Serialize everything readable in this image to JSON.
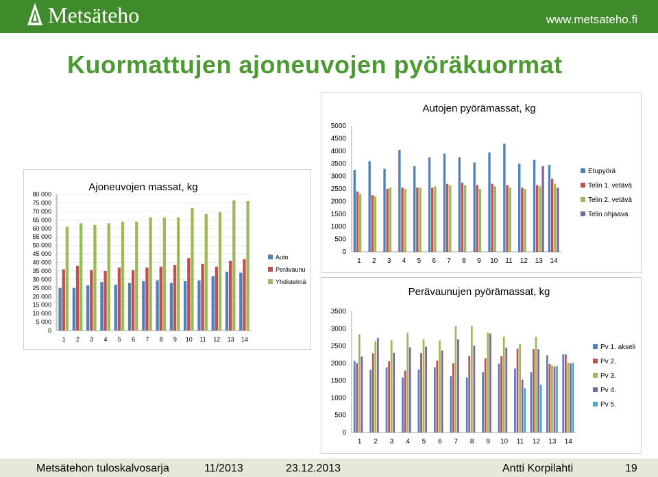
{
  "header": {
    "logo_text": "Metsäteho",
    "url": "www.metsateho.fi",
    "colors": {
      "bar": "#3f8a2b",
      "title": "#4b9b32",
      "footer": "#e4e9da"
    }
  },
  "page_title": "Kuormattujen ajoneuvojen pyöräkuormat",
  "footer": {
    "series": "Metsätehon tuloskalvosarja",
    "issue": "11/2013",
    "date": "23.12.2013",
    "author": "Antti Korpilahti",
    "page": "19"
  },
  "chart_data": [
    {
      "id": "vehicle-mass",
      "type": "bar",
      "title": "Ajoneuvojen massat, kg",
      "categories": [
        "1",
        "2",
        "3",
        "4",
        "5",
        "6",
        "7",
        "8",
        "9",
        "10",
        "11",
        "12",
        "13",
        "14"
      ],
      "ylim": [
        0,
        80000
      ],
      "yticks": [
        0,
        5000,
        10000,
        15000,
        20000,
        25000,
        30000,
        35000,
        40000,
        45000,
        50000,
        55000,
        60000,
        65000,
        70000,
        75000,
        80000
      ],
      "ytick_labels": [
        "0",
        "5 000",
        "10 000",
        "15 000",
        "20 000",
        "25 000",
        "30 000",
        "35 000",
        "40 000",
        "45 000",
        "50 000",
        "55 000",
        "60 000",
        "65 000",
        "70 000",
        "75 000",
        "80 000"
      ],
      "grid": true,
      "legend": "right",
      "series": [
        {
          "name": "Auto",
          "color": "#4f81bd",
          "values": [
            25000,
            25000,
            26500,
            28500,
            27000,
            28000,
            29000,
            29500,
            28000,
            29000,
            29500,
            32000,
            34500,
            34000
          ]
        },
        {
          "name": "Perävaunu",
          "color": "#c0504d",
          "values": [
            36000,
            38000,
            35500,
            35000,
            37000,
            35500,
            37000,
            37500,
            38500,
            42500,
            39000,
            37500,
            41000,
            42000
          ]
        },
        {
          "name": "Yhdistelmä",
          "color": "#9bbb59",
          "values": [
            61000,
            63000,
            62000,
            63000,
            64000,
            64000,
            66500,
            66500,
            66500,
            72000,
            68500,
            69500,
            76500,
            76000
          ]
        }
      ]
    },
    {
      "id": "truck-wheel-mass",
      "type": "bar",
      "title": "Autojen pyörämassat, kg",
      "categories": [
        "1",
        "2",
        "3",
        "4",
        "5",
        "6",
        "7",
        "8",
        "9",
        "10",
        "11",
        "12",
        "13",
        "14"
      ],
      "ylim": [
        0,
        5000
      ],
      "yticks": [
        0,
        500,
        1000,
        1500,
        2000,
        2500,
        3000,
        3500,
        4000,
        4500,
        5000
      ],
      "ytick_labels": [
        "0",
        "500",
        "1000",
        "1500",
        "2000",
        "2500",
        "3000",
        "3500",
        "4000",
        "4500",
        "5000"
      ],
      "grid": false,
      "legend": "right",
      "series": [
        {
          "name": "Etupyörä",
          "color": "#4f81bd",
          "values": [
            3250,
            3600,
            3300,
            4050,
            3400,
            3750,
            3900,
            3750,
            3550,
            3950,
            4300,
            3500,
            3650,
            3450
          ]
        },
        {
          "name": "Telin 1. vetävä",
          "color": "#c0504d",
          "values": [
            2400,
            2250,
            2500,
            2550,
            2550,
            2550,
            2700,
            2750,
            2650,
            2700,
            2650,
            2550,
            2650,
            2900
          ]
        },
        {
          "name": "Telin 2. vetävä",
          "color": "#9bbb59",
          "values": [
            2300,
            2200,
            2550,
            2500,
            2550,
            2600,
            2650,
            2650,
            2500,
            2600,
            2550,
            2500,
            2600,
            2700
          ]
        },
        {
          "name": "Telin ohjaava",
          "color": "#8064a2",
          "values": [
            null,
            null,
            null,
            null,
            null,
            null,
            null,
            null,
            null,
            null,
            null,
            null,
            3400,
            2550
          ]
        }
      ]
    },
    {
      "id": "trailer-wheel-mass",
      "type": "bar",
      "title": "Perävaunujen pyörämassat, kg",
      "categories": [
        "1",
        "2",
        "3",
        "4",
        "5",
        "6",
        "7",
        "8",
        "9",
        "10",
        "11",
        "12",
        "13",
        "14"
      ],
      "ylim": [
        0,
        3500
      ],
      "yticks": [
        0,
        500,
        1000,
        1500,
        2000,
        2500,
        3000,
        3500
      ],
      "ytick_labels": [
        "0",
        "500",
        "1000",
        "1500",
        "2000",
        "2500",
        "3000",
        "3500"
      ],
      "grid": false,
      "legend": "right",
      "series": [
        {
          "name": "Pv 1. akseli",
          "color": "#4f81bd",
          "values": [
            2070,
            1810,
            1880,
            1590,
            1820,
            1890,
            1630,
            1590,
            1740,
            1990,
            1850,
            1740,
            2230,
            2260
          ]
        },
        {
          "name": "Pv 2.",
          "color": "#c0504d",
          "values": [
            2000,
            2290,
            2060,
            1790,
            2290,
            2080,
            2000,
            2220,
            2150,
            2210,
            2420,
            2410,
            1980,
            2260
          ]
        },
        {
          "name": "Pv 3.",
          "color": "#9bbb59",
          "values": [
            2840,
            2640,
            2670,
            2880,
            2700,
            2660,
            3080,
            3080,
            2890,
            2770,
            2560,
            2770,
            1940,
            2020
          ]
        },
        {
          "name": "Pv 4.",
          "color": "#8064a2",
          "values": [
            2200,
            2730,
            2300,
            2460,
            2480,
            2370,
            2690,
            2510,
            2860,
            2450,
            1530,
            2410,
            1910,
            2000
          ]
        },
        {
          "name": "Pv 5.",
          "color": "#4bacc6",
          "values": [
            null,
            null,
            null,
            null,
            null,
            null,
            null,
            null,
            null,
            null,
            1280,
            1380,
            1920,
            2020
          ]
        }
      ]
    }
  ]
}
